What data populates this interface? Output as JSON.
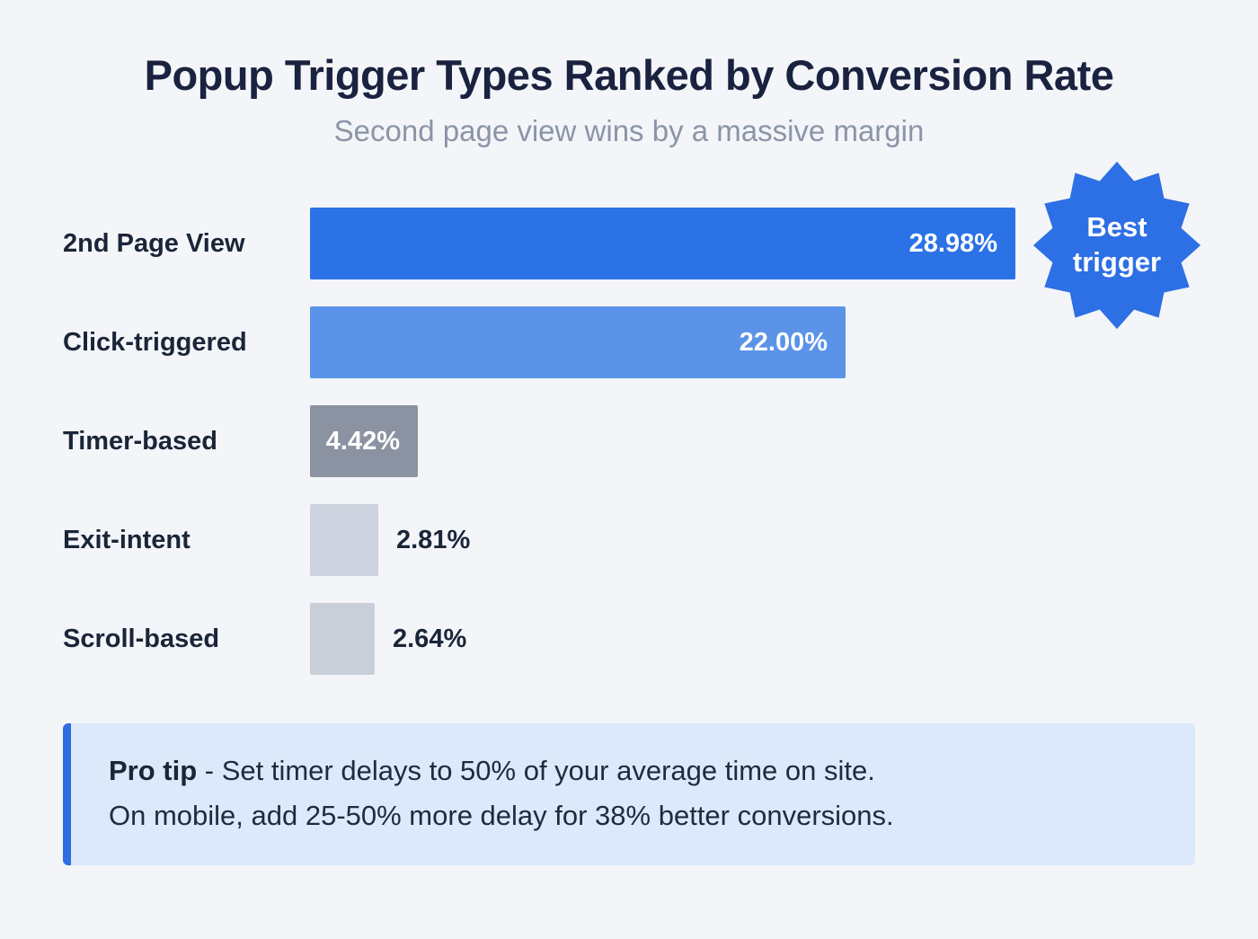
{
  "title": "Popup Trigger Types Ranked by Conversion Rate",
  "subtitle": "Second page view wins by a massive margin",
  "badge": {
    "line1": "Best",
    "line2": "trigger",
    "color": "#2d6fe4"
  },
  "pro_tip": {
    "label": "Pro tip",
    "line1": " - Set timer delays to 50% of your average time on site.",
    "line2": "On mobile, add 25-50% more delay for 38% better conversions."
  },
  "colors": {
    "background": "#f3f5f9",
    "title_text": "#1a2240",
    "subtitle_text": "#8b95a6",
    "protip_background": "#dbe9fa",
    "protip_accent": "#2d6ce2"
  },
  "chart_data": {
    "type": "bar",
    "orientation": "horizontal",
    "title": "Popup Trigger Types Ranked by Conversion Rate",
    "subtitle": "Second page view wins by a massive margin",
    "categories": [
      "2nd Page View",
      "Click-triggered",
      "Timer-based",
      "Exit-intent",
      "Scroll-based"
    ],
    "values": [
      28.98,
      22.0,
      4.42,
      2.81,
      2.64
    ],
    "value_labels": [
      "28.98%",
      "22.00%",
      "4.42%",
      "2.81%",
      "2.64%"
    ],
    "bar_colors": [
      "#2a72e6",
      "#5a93e8",
      "#8b93a2",
      "#cdd3de",
      "#c9cfd9"
    ],
    "label_inside": [
      true,
      true,
      true,
      false,
      false
    ],
    "xlim": [
      0,
      28.98
    ],
    "grid": false,
    "legend": "none",
    "annotations": [
      {
        "text": "Best trigger",
        "target": "2nd Page View",
        "shape": "starburst"
      }
    ]
  }
}
